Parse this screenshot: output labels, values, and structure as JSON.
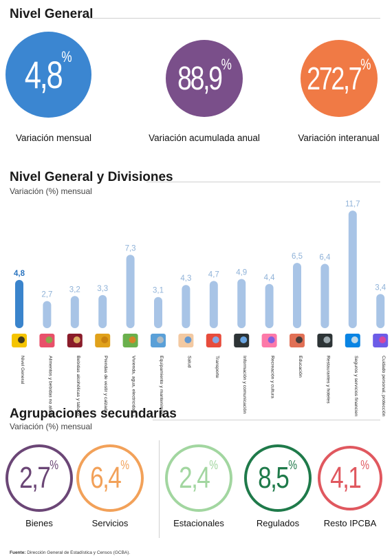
{
  "nivel_general": {
    "title": "Nivel General",
    "cards": [
      {
        "value": "4,8",
        "unit": "%",
        "label": "Variación mensual",
        "color": "#3b86d1"
      },
      {
        "value": "88,9",
        "unit": "%",
        "label": "Variación acumulada anual",
        "color": "#7a4f8a"
      },
      {
        "value": "272,7",
        "unit": "%",
        "label": "Variación interanual",
        "color": "#f07a45"
      }
    ]
  },
  "divisiones": {
    "title": "Nivel General y Divisiones",
    "subtitle": "Variación (%) mensual"
  },
  "chart_data": {
    "type": "bar",
    "title": "Nivel General y Divisiones",
    "ylabel": "Variación (%) mensual",
    "categories": [
      "Nivel General",
      "Alimentos y bebidas no alcohólicas",
      "Bebidas alcohólicas y tabaco",
      "Prendas de vestir y calzado",
      "Vivienda, agua, electricidad, gas y otros combustibles",
      "Equipamiento y mantenimiento del hogar",
      "Salud",
      "Transporte",
      "Información y comunicación",
      "Recreación y cultura",
      "Educación",
      "Restaurantes y hoteles",
      "Seguros y servicios financieros",
      "Cuidado personal, protección social y otros productos"
    ],
    "values": [
      4.8,
      2.7,
      3.2,
      3.3,
      7.3,
      3.1,
      4.3,
      4.7,
      4.9,
      4.4,
      6.5,
      6.4,
      11.7,
      3.4
    ],
    "value_labels": [
      "4,8",
      "2,7",
      "3,2",
      "3,3",
      "7,3",
      "3,1",
      "4,3",
      "4,7",
      "4,9",
      "4,4",
      "6,5",
      "6,4",
      "11,7",
      "3,4"
    ],
    "icons": [
      "ipc-badge-icon",
      "food-icon",
      "wine-icon",
      "jacket-icon",
      "house-icon",
      "washing-machine-icon",
      "doctor-icon",
      "airplane-car-icon",
      "computer-icon",
      "art-icon",
      "school-icon",
      "restaurant-icon",
      "bank-icon",
      "cosmetics-icon"
    ],
    "colors": {
      "highlight": "#3a84cc",
      "bar": "#a8c4e6",
      "highlight_label": "#2a74bf",
      "label": "#8fb2d8"
    },
    "ylim": [
      0,
      12
    ]
  },
  "agrupaciones": {
    "title": "Agrupaciones secundarias",
    "subtitle": "Variación (%) mensual",
    "items": [
      {
        "value": "2,7",
        "unit": "%",
        "label": "Bienes",
        "color": "#6b4676"
      },
      {
        "value": "6,4",
        "unit": "%",
        "label": "Servicios",
        "color": "#f2a159"
      },
      {
        "value": "2,4",
        "unit": "%",
        "label": "Estacionales",
        "color": "#a2d6a0"
      },
      {
        "value": "8,5",
        "unit": "%",
        "label": "Regulados",
        "color": "#1f7a4a"
      },
      {
        "value": "4,1",
        "unit": "%",
        "label": "Resto IPCBA",
        "color": "#e0585f"
      }
    ]
  },
  "footer": {
    "source_label": "Fuente:",
    "source_text": "Dirección General de Estadística y Censos (GCBA)."
  }
}
